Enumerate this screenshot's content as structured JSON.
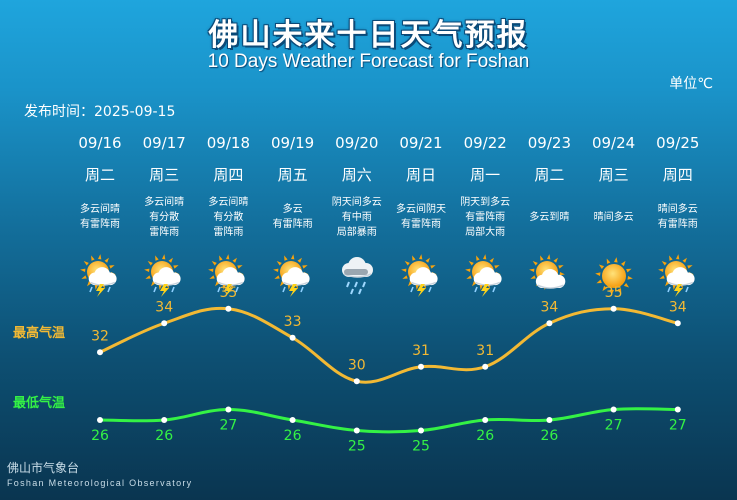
{
  "header": {
    "title": "佛山未来十日天气预报",
    "subtitle": "10 Days Weather Forecast for Foshan",
    "unit": "单位℃",
    "issue": "发布时间：2025-09-15"
  },
  "labels": {
    "high": "最高气温",
    "low": "最低气温"
  },
  "footer": {
    "cn": "佛山市气象台",
    "en": "Foshan Meteorological Observatory"
  },
  "colors": {
    "high": "#f2b934",
    "low": "#34f245"
  },
  "days": [
    {
      "date": "09/16",
      "week": "周二",
      "desc": [
        "多云间晴",
        "有雷阵雨"
      ],
      "icon": "sun-cloud-thunder-rain-icon"
    },
    {
      "date": "09/17",
      "week": "周三",
      "desc": [
        "多云间晴",
        "有分散",
        "雷阵雨"
      ],
      "icon": "sun-cloud-thunder-rain-icon"
    },
    {
      "date": "09/18",
      "week": "周四",
      "desc": [
        "多云间晴",
        "有分散",
        "雷阵雨"
      ],
      "icon": "sun-cloud-thunder-rain-icon"
    },
    {
      "date": "09/19",
      "week": "周五",
      "desc": [
        "多云",
        "有雷阵雨"
      ],
      "icon": "sun-cloud-thunder-rain-icon"
    },
    {
      "date": "09/20",
      "week": "周六",
      "desc": [
        "阴天间多云",
        "有中雨",
        "局部暴雨"
      ],
      "icon": "cloud-rain-icon"
    },
    {
      "date": "09/21",
      "week": "周日",
      "desc": [
        "多云间阴天",
        "有雷阵雨"
      ],
      "icon": "sun-cloud-thunder-rain-icon"
    },
    {
      "date": "09/22",
      "week": "周一",
      "desc": [
        "阴天到多云",
        "有雷阵雨",
        "局部大雨"
      ],
      "icon": "sun-cloud-thunder-rain-icon"
    },
    {
      "date": "09/23",
      "week": "周二",
      "desc": [
        "多云到晴"
      ],
      "icon": "sun-cloud-icon"
    },
    {
      "date": "09/24",
      "week": "周三",
      "desc": [
        "晴间多云"
      ],
      "icon": "sun-icon"
    },
    {
      "date": "09/25",
      "week": "周四",
      "desc": [
        "晴间多云",
        "有雷阵雨"
      ],
      "icon": "sun-cloud-thunder-rain-icon"
    }
  ],
  "chart_data": {
    "type": "line",
    "x": [
      "09/16",
      "09/17",
      "09/18",
      "09/19",
      "09/20",
      "09/21",
      "09/22",
      "09/23",
      "09/24",
      "09/25"
    ],
    "series": [
      {
        "name": "最高气温",
        "values": [
          32,
          34,
          35,
          33,
          30,
          31,
          31,
          34,
          35,
          34
        ]
      },
      {
        "name": "最低气温",
        "values": [
          26,
          26,
          27,
          26,
          25,
          25,
          26,
          26,
          27,
          27
        ]
      }
    ]
  }
}
